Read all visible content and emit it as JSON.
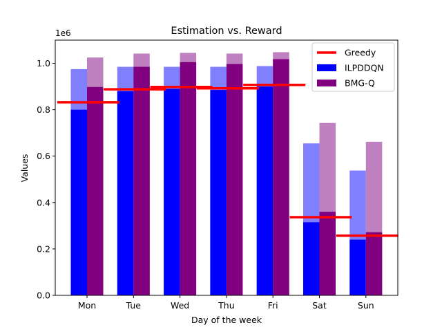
{
  "chart_data": {
    "type": "bar",
    "title": "Estimation vs. Reward",
    "xlabel": "Day of the week",
    "ylabel": "Values",
    "y_offset_label": "1e6",
    "y_scale": 1000000,
    "ylim": [
      0,
      1100000
    ],
    "yticks": [
      0,
      200000,
      400000,
      600000,
      800000,
      1000000
    ],
    "ytick_labels": [
      "0.0",
      "0.2",
      "0.4",
      "0.6",
      "0.8",
      "1.0"
    ],
    "categories": [
      "Mon",
      "Tue",
      "Wed",
      "Thu",
      "Fri",
      "Sat",
      "Sun"
    ],
    "series": [
      {
        "name": "ILPDDQN",
        "color": "#0000ff",
        "estimation_color": "#8080ff",
        "reward": [
          800000,
          880000,
          890000,
          885000,
          900000,
          315000,
          240000
        ],
        "estimation": [
          975000,
          985000,
          985000,
          985000,
          988000,
          655000,
          538000
        ]
      },
      {
        "name": "BMG-Q",
        "color": "#800080",
        "estimation_color": "#bf80bf",
        "reward": [
          898000,
          985000,
          1005000,
          997000,
          1018000,
          360000,
          272000
        ],
        "estimation": [
          1025000,
          1042000,
          1045000,
          1042000,
          1048000,
          743000,
          662000
        ]
      }
    ],
    "greedy": {
      "name": "Greedy",
      "color": "#ff0000",
      "values": [
        832000,
        888000,
        898000,
        892000,
        907000,
        337000,
        257000
      ]
    },
    "legend": {
      "position": "upper right",
      "entries": [
        "Greedy",
        "ILPDDQN",
        "BMG-Q"
      ]
    },
    "grid": false
  }
}
